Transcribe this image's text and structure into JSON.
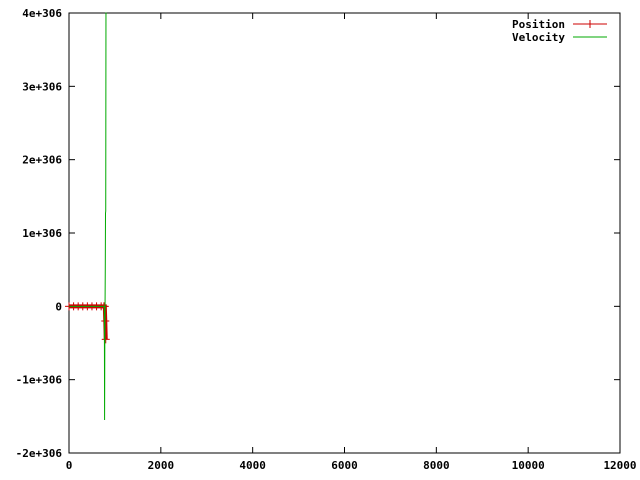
{
  "chart_data": {
    "type": "line",
    "title": "",
    "xlabel": "",
    "ylabel": "",
    "xlim": [
      0,
      12000
    ],
    "ylim": [
      -2e+306,
      4e+306
    ],
    "x_ticks": [
      0,
      2000,
      4000,
      6000,
      8000,
      10000,
      12000
    ],
    "x_tick_labels": [
      "0",
      "2000",
      "4000",
      "6000",
      "8000",
      "10000",
      "12000"
    ],
    "y_ticks": [
      -2e+306,
      -1e+306,
      0,
      1e+306,
      2e+306,
      3e+306,
      4e+306
    ],
    "y_tick_labels": [
      "-2e+306",
      "-1e+306",
      "0",
      "1e+306",
      "2e+306",
      "3e+306",
      "4e+306"
    ],
    "grid": false,
    "legend_position": "top-right",
    "series": [
      {
        "name": "Position",
        "color": "#cc0000",
        "marker": "plus",
        "x": [
          0,
          100,
          200,
          300,
          400,
          500,
          600,
          700,
          760,
          780,
          790,
          800
        ],
        "y": [
          0,
          0,
          0,
          0,
          0,
          0,
          0,
          0,
          0,
          0,
          -2e+305,
          -4.5e+305
        ]
      },
      {
        "name": "Velocity",
        "color": "#00aa00",
        "marker": "none",
        "x": [
          0,
          700,
          770,
          775,
          780,
          785,
          790,
          795,
          800,
          805,
          810,
          815
        ],
        "y": [
          0,
          0,
          0,
          -1.55e+306,
          -5e+305,
          0,
          5e+305,
          1.27e+306,
          1.3e+306,
          4e+306,
          4e+306,
          4e+306
        ]
      }
    ]
  }
}
